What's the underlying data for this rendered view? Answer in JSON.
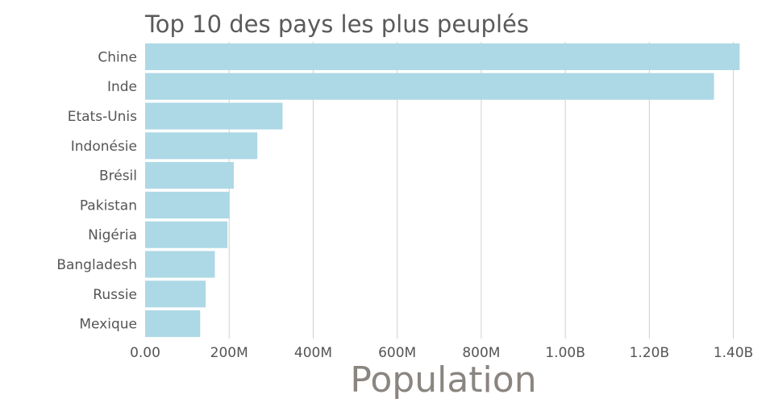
{
  "chart_data": {
    "type": "bar",
    "orientation": "horizontal",
    "title": "Top 10 des pays les plus peuplés",
    "xlabel": "Population",
    "ylabel": "",
    "categories": [
      "Chine",
      "Inde",
      "Etats-Unis",
      "Indonésie",
      "Brésil",
      "Pakistan",
      "Nigéria",
      "Bangladesh",
      "Russie",
      "Mexique"
    ],
    "values": [
      1415000000,
      1354000000,
      327000000,
      267000000,
      211000000,
      201000000,
      196000000,
      166000000,
      144000000,
      131000000
    ],
    "xlim": [
      0,
      1420000000
    ],
    "xticks": [
      0,
      200000000,
      400000000,
      600000000,
      800000000,
      1000000000,
      1200000000,
      1400000000
    ],
    "xtick_labels": [
      "0.00",
      "200M",
      "400M",
      "600M",
      "800M",
      "1.00B",
      "1.20B",
      "1.40B"
    ],
    "grid": "vertical",
    "legend": "none",
    "colors": {
      "bar": "#add8e6",
      "grid": "#cfcfcf",
      "text": "#555555",
      "title": "#5a5a5a",
      "xlabel": "#8a8580"
    }
  }
}
